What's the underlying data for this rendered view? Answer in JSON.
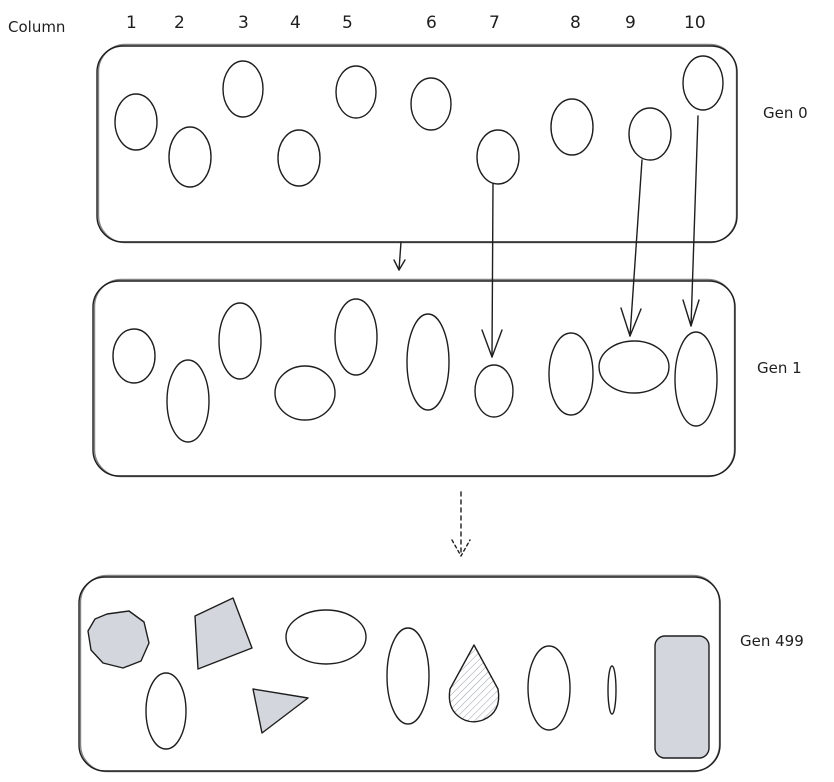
{
  "column_header": "Column",
  "columns": [
    "1",
    "2",
    "3",
    "4",
    "5",
    "6",
    "7",
    "8",
    "9",
    "10"
  ],
  "generations": [
    {
      "label": "Gen 0"
    },
    {
      "label": "Gen 1"
    },
    {
      "label": "Gen 499"
    }
  ],
  "colors": {
    "stroke": "#1e1e1e",
    "fill_gray": "#d3d6dc",
    "background": "#ffffff"
  }
}
